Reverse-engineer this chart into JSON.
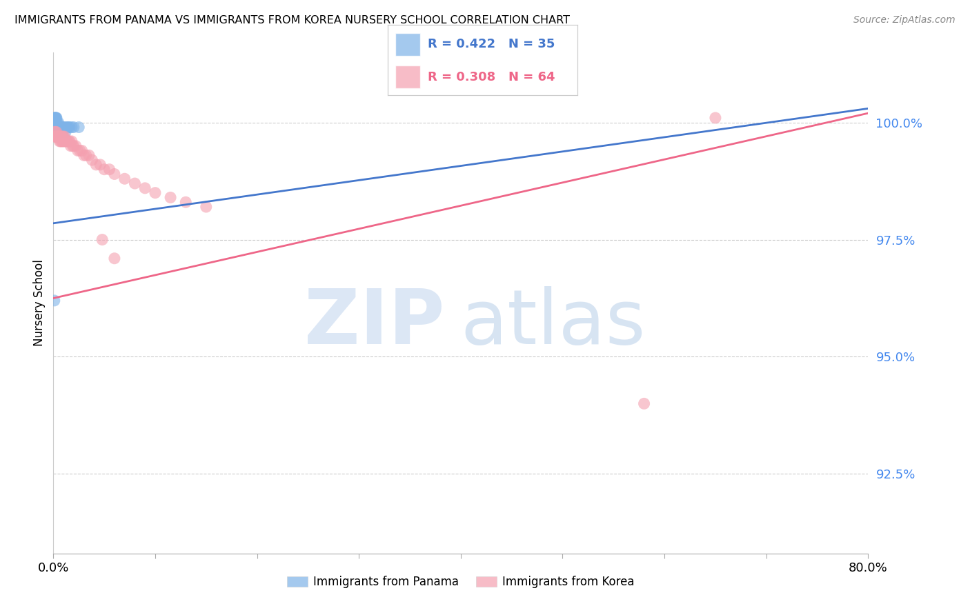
{
  "title": "IMMIGRANTS FROM PANAMA VS IMMIGRANTS FROM KOREA NURSERY SCHOOL CORRELATION CHART",
  "source": "Source: ZipAtlas.com",
  "ylabel": "Nursery School",
  "ytick_labels": [
    "100.0%",
    "97.5%",
    "95.0%",
    "92.5%"
  ],
  "ytick_values": [
    1.0,
    0.975,
    0.95,
    0.925
  ],
  "xmin": 0.0,
  "xmax": 0.8,
  "ymin": 0.908,
  "ymax": 1.015,
  "legend_panama": "Immigrants from Panama",
  "legend_korea": "Immigrants from Korea",
  "R_panama": 0.422,
  "N_panama": 35,
  "R_korea": 0.308,
  "N_korea": 64,
  "blue_color": "#7EB3E8",
  "pink_color": "#F4A0B0",
  "blue_line_color": "#4477CC",
  "pink_line_color": "#EE6688",
  "panama_x": [
    0.001,
    0.001,
    0.001,
    0.002,
    0.002,
    0.002,
    0.002,
    0.003,
    0.003,
    0.003,
    0.003,
    0.004,
    0.004,
    0.004,
    0.005,
    0.005,
    0.005,
    0.006,
    0.006,
    0.007,
    0.007,
    0.008,
    0.009,
    0.009,
    0.01,
    0.011,
    0.012,
    0.013,
    0.014,
    0.015,
    0.016,
    0.018,
    0.02,
    0.025,
    0.001
  ],
  "panama_y": [
    0.999,
    1.001,
    1.001,
    1.001,
    1.001,
    1.0,
    1.001,
    1.001,
    1.001,
    1.0,
    0.999,
    1.0,
    0.999,
    0.998,
    0.999,
    1.0,
    0.999,
    0.999,
    0.999,
    0.999,
    0.999,
    0.999,
    0.999,
    0.998,
    0.999,
    0.999,
    0.998,
    0.999,
    0.999,
    0.999,
    0.999,
    0.999,
    0.999,
    0.999,
    0.962
  ],
  "korea_x": [
    0.001,
    0.001,
    0.002,
    0.002,
    0.002,
    0.003,
    0.003,
    0.003,
    0.003,
    0.004,
    0.004,
    0.004,
    0.004,
    0.005,
    0.005,
    0.005,
    0.006,
    0.006,
    0.006,
    0.007,
    0.007,
    0.007,
    0.008,
    0.008,
    0.008,
    0.009,
    0.009,
    0.01,
    0.01,
    0.011,
    0.011,
    0.012,
    0.013,
    0.014,
    0.015,
    0.016,
    0.017,
    0.018,
    0.019,
    0.02,
    0.022,
    0.024,
    0.026,
    0.028,
    0.03,
    0.032,
    0.035,
    0.038,
    0.042,
    0.046,
    0.05,
    0.055,
    0.06,
    0.07,
    0.08,
    0.09,
    0.1,
    0.115,
    0.13,
    0.15,
    0.048,
    0.06,
    0.65,
    0.58
  ],
  "korea_y": [
    0.998,
    0.997,
    0.998,
    0.997,
    0.997,
    0.997,
    0.997,
    0.998,
    0.997,
    0.997,
    0.997,
    0.997,
    0.997,
    0.997,
    0.997,
    0.997,
    0.997,
    0.997,
    0.996,
    0.997,
    0.997,
    0.996,
    0.997,
    0.996,
    0.997,
    0.996,
    0.997,
    0.997,
    0.996,
    0.996,
    0.997,
    0.996,
    0.996,
    0.996,
    0.996,
    0.996,
    0.995,
    0.996,
    0.995,
    0.995,
    0.995,
    0.994,
    0.994,
    0.994,
    0.993,
    0.993,
    0.993,
    0.992,
    0.991,
    0.991,
    0.99,
    0.99,
    0.989,
    0.988,
    0.987,
    0.986,
    0.985,
    0.984,
    0.983,
    0.982,
    0.975,
    0.971,
    1.001,
    0.94
  ],
  "blue_trend_x": [
    0.0,
    0.8
  ],
  "blue_trend_y": [
    0.9785,
    1.003
  ],
  "pink_trend_x": [
    0.0,
    0.8
  ],
  "pink_trend_y": [
    0.9625,
    1.002
  ]
}
